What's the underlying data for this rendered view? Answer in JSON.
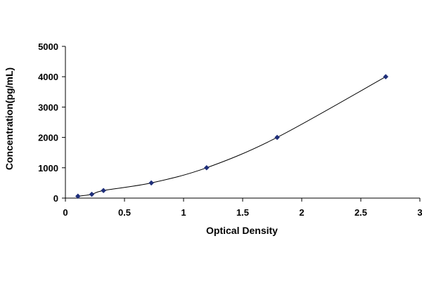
{
  "chart_data": {
    "type": "scatter",
    "title": "",
    "xlabel": "Optical Density",
    "ylabel": "Concentration(pg/mL)",
    "xlim": [
      0,
      3
    ],
    "ylim": [
      0,
      5000
    ],
    "x_ticks": [
      "0",
      "0.5",
      "1",
      "1.5",
      "2",
      "2.5",
      "3"
    ],
    "y_ticks": [
      "0",
      "1000",
      "2000",
      "3000",
      "4000",
      "5000"
    ],
    "grid": false,
    "legend": "none",
    "series": [
      {
        "x": [
          0.106,
          0.223,
          0.322,
          0.727,
          1.195,
          1.792,
          2.711
        ],
        "y": [
          62.5,
          125,
          250,
          500,
          1000,
          2000,
          4000
        ],
        "marker": "diamond",
        "color": "#1f2f7a",
        "trendline": "smooth-curve"
      }
    ]
  }
}
